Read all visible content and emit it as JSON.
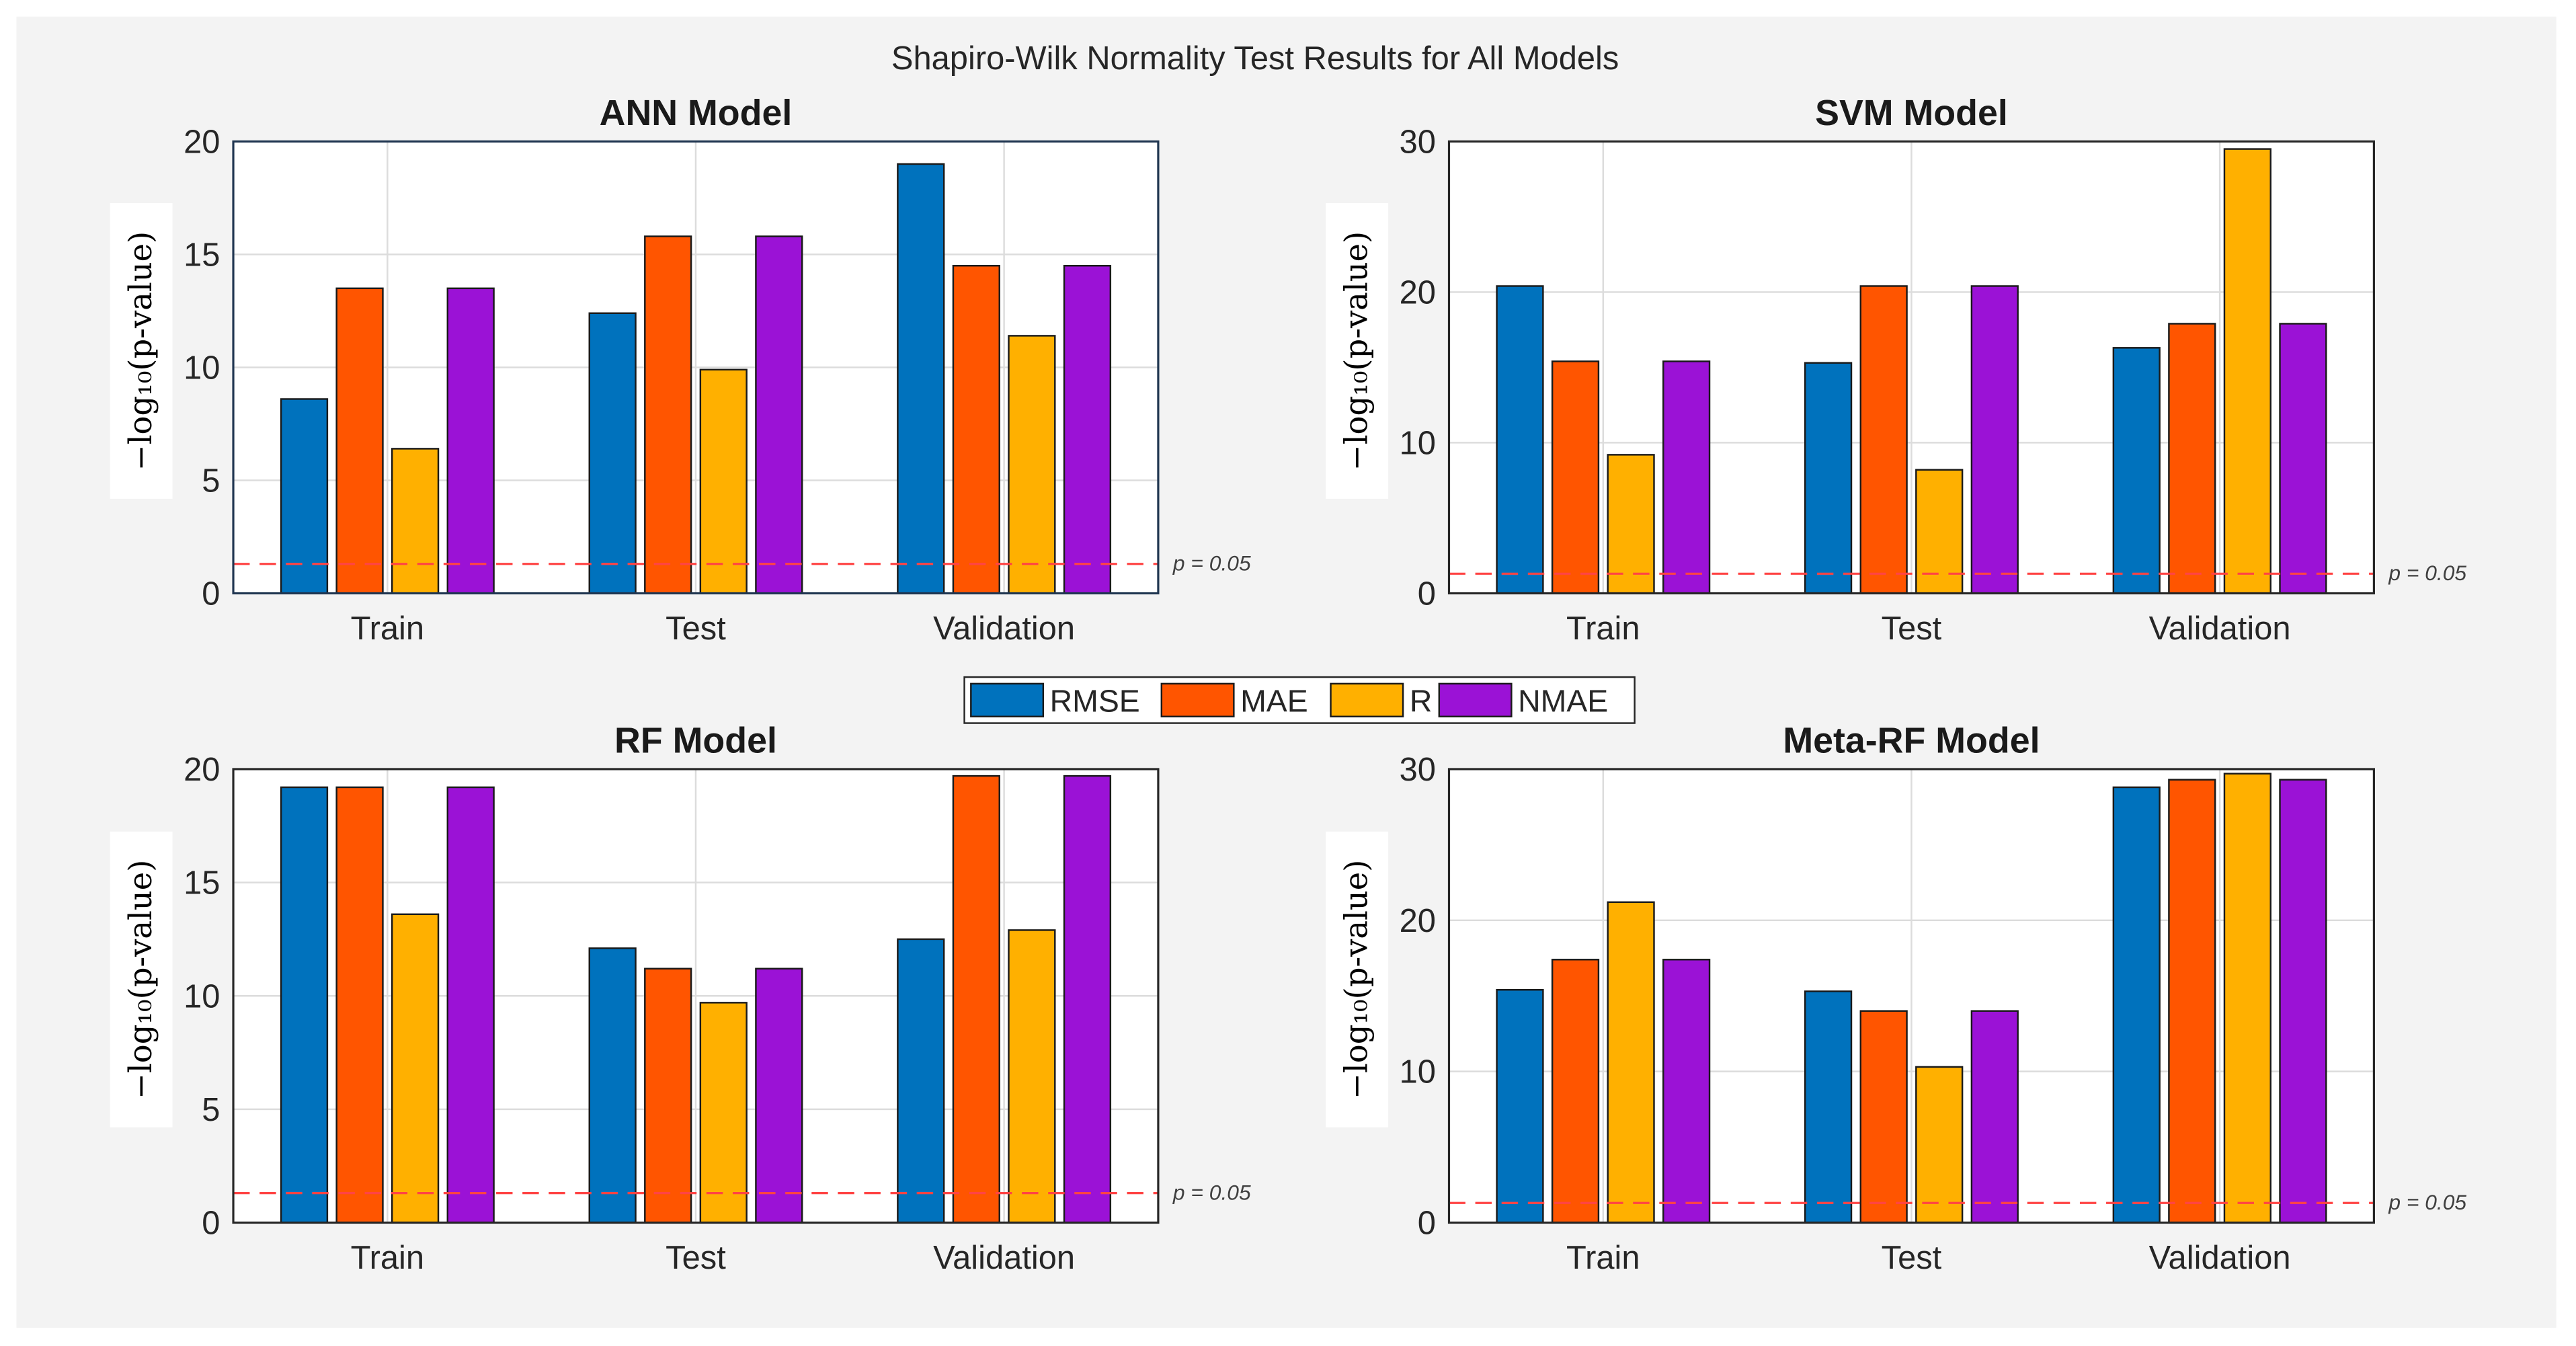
{
  "chart_data": {
    "type": "bar",
    "title": "Shapiro-Wilk Normality Test Results for All Models",
    "categories": [
      "Train",
      "Test",
      "Validation"
    ],
    "legend": {
      "entries": [
        "RMSE",
        "MAE",
        "R",
        "NMAE"
      ],
      "placement": "center"
    },
    "colors": {
      "RMSE": "#0072BD",
      "MAE": "#FF5500",
      "R": "#FFB000",
      "NMAE": "#9B12D6"
    },
    "threshold": {
      "value": 1.301,
      "label": "p = 0.05",
      "color": "#FF4444"
    },
    "ylabel": "−log₁₀(p-value)",
    "grid": true,
    "subplots": [
      {
        "title": "ANN Model",
        "ylim": [
          0,
          20
        ],
        "yticks": [
          "0",
          "5",
          "10",
          "15",
          "20"
        ],
        "tickvals": [
          0,
          5,
          10,
          15,
          20
        ],
        "series": [
          {
            "name": "RMSE",
            "values": [
              8.6,
              12.4,
              19.0
            ]
          },
          {
            "name": "MAE",
            "values": [
              13.5,
              15.8,
              14.5
            ]
          },
          {
            "name": "R",
            "values": [
              6.4,
              9.9,
              11.4
            ]
          },
          {
            "name": "NMAE",
            "values": [
              13.5,
              15.8,
              14.5
            ]
          }
        ]
      },
      {
        "title": "SVM Model",
        "ylim": [
          0,
          30
        ],
        "yticks": [
          "0",
          "10",
          "20",
          "30"
        ],
        "tickvals": [
          0,
          10,
          20,
          30
        ],
        "series": [
          {
            "name": "RMSE",
            "values": [
              20.4,
              15.3,
              16.3
            ]
          },
          {
            "name": "MAE",
            "values": [
              15.4,
              20.4,
              17.9
            ]
          },
          {
            "name": "R",
            "values": [
              9.2,
              8.2,
              29.5
            ]
          },
          {
            "name": "NMAE",
            "values": [
              15.4,
              20.4,
              17.9
            ]
          }
        ]
      },
      {
        "title": "RF Model",
        "ylim": [
          0,
          20
        ],
        "yticks": [
          "0",
          "5",
          "10",
          "15",
          "20"
        ],
        "tickvals": [
          0,
          5,
          10,
          15,
          20
        ],
        "series": [
          {
            "name": "RMSE",
            "values": [
              19.2,
              12.1,
              12.5
            ]
          },
          {
            "name": "MAE",
            "values": [
              19.2,
              11.2,
              19.7
            ]
          },
          {
            "name": "R",
            "values": [
              13.6,
              9.7,
              12.9
            ]
          },
          {
            "name": "NMAE",
            "values": [
              19.2,
              11.2,
              19.7
            ]
          }
        ]
      },
      {
        "title": "Meta-RF Model",
        "ylim": [
          0,
          30
        ],
        "yticks": [
          "0",
          "10",
          "20",
          "30"
        ],
        "tickvals": [
          0,
          10,
          20,
          30
        ],
        "series": [
          {
            "name": "RMSE",
            "values": [
              15.4,
              15.3,
              28.8
            ]
          },
          {
            "name": "MAE",
            "values": [
              17.4,
              14.0,
              29.3
            ]
          },
          {
            "name": "R",
            "values": [
              21.2,
              10.3,
              29.7
            ]
          },
          {
            "name": "NMAE",
            "values": [
              17.4,
              14.0,
              29.3
            ]
          }
        ]
      }
    ]
  }
}
